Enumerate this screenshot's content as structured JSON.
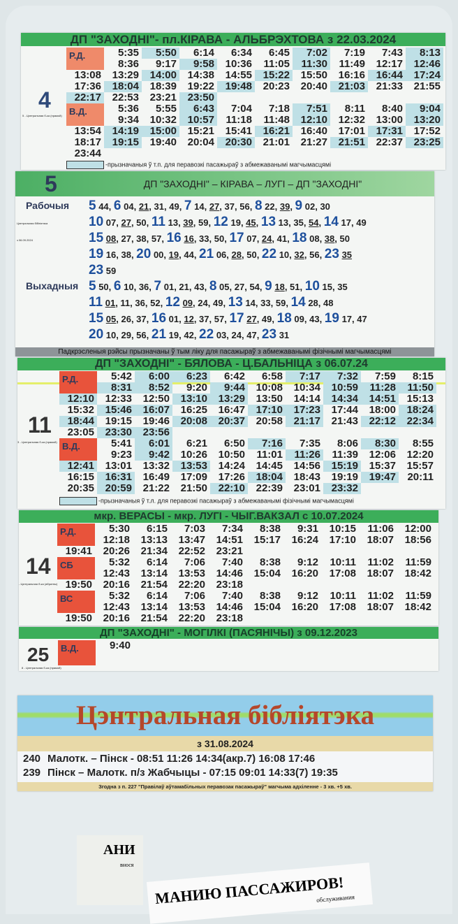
{
  "colors": {
    "header_green": "#3cae5a",
    "workday_label": "#ef8a6a",
    "accessible_highlight": "#bfe0e6",
    "hour_blue": "#1d4f9c",
    "library_title": "#b5472a"
  },
  "route4": {
    "number": "4",
    "title": "ДП \"ЗАХОДНІ\"- пл.КІРАВА - АЛЬБРЭХТОВА з 22.03.2024",
    "side_note": "5 - Цэнтральная б-ка (прамой)",
    "legend": "-прызначаныя ў т.п. для перавозкі пасажыраў з абмежаванымі магчымасцямі",
    "blocks": [
      {
        "label": "Р.Д.",
        "rows": [
          [
            "",
            "5:35",
            "5:50",
            "6:14",
            "6:34",
            "6:45",
            "7:02",
            "7:19",
            "7:43",
            "8:13"
          ],
          [
            "",
            "8:36",
            "9:17",
            "9:58",
            "10:36",
            "11:05",
            "11:30",
            "11:49",
            "12:17",
            "12:46"
          ],
          [
            "13:08",
            "13:29",
            "14:00",
            "14:38",
            "14:55",
            "15:22",
            "15:50",
            "16:16",
            "16:44",
            "17:24"
          ],
          [
            "17:36",
            "18:04",
            "18:39",
            "19:22",
            "19:48",
            "20:23",
            "20:40",
            "21:03",
            "21:33",
            "21:55"
          ],
          [
            "22:17",
            "22:53",
            "23:21",
            "23:50"
          ]
        ],
        "highlighted": [
          "5:50",
          "7:02",
          "8:13",
          "9:58",
          "11:30",
          "12:46",
          "14:00",
          "15:22",
          "16:44",
          "17:24",
          "18:04",
          "19:48",
          "21:03",
          "22:17",
          "23:50"
        ]
      },
      {
        "label": "В.Д.",
        "rows": [
          [
            "",
            "5:36",
            "5:55",
            "6:43",
            "7:04",
            "7:18",
            "7:51",
            "8:11",
            "8:40",
            "9:04"
          ],
          [
            "",
            "9:34",
            "10:32",
            "10:57",
            "11:18",
            "11:48",
            "12:10",
            "12:32",
            "13:00",
            "13:20"
          ],
          [
            "13:54",
            "14:19",
            "15:00",
            "15:21",
            "15:41",
            "16:21",
            "16:40",
            "17:01",
            "17:31",
            "17:52"
          ],
          [
            "18:17",
            "19:15",
            "19:40",
            "20:04",
            "20:30",
            "21:01",
            "21:27",
            "21:51",
            "22:37",
            "23:25"
          ],
          [
            "23:44"
          ]
        ],
        "highlighted": [
          "6:43",
          "7:51",
          "9:04",
          "10:57",
          "12:10",
          "13:20",
          "14:19",
          "15:00",
          "16:21",
          "17:31",
          "19:15",
          "20:30",
          "21:51",
          "23:25"
        ]
      }
    ]
  },
  "route5": {
    "number": "5",
    "title": "ДП \"ЗАХОДНІ\" – КІРАВА – ЛУГІ – ДП \"ЗАХОДНІ\"",
    "side_note_1": "Цэнтральная бібліятэка",
    "side_note_2": "з 06.09.2024",
    "footer": "Падкрэсленыя рэйсы прызначаны ў тым ліку для пасажыраў з абмежаванымі фізічнымі магчымасцямі",
    "groups": [
      {
        "label": "Рабочыя",
        "lines": [
          [
            {
              "h": "5",
              "m": [
                "44"
              ],
              "u": []
            },
            {
              "h": "6",
              "m": [
                "04",
                "21",
                "31",
                "49"
              ],
              "u": [
                "21"
              ]
            },
            {
              "h": "7",
              "m": [
                "14",
                "27",
                "37",
                "56"
              ],
              "u": [
                "27"
              ]
            },
            {
              "h": "8",
              "m": [
                "22",
                "39"
              ],
              "u": [
                "39"
              ]
            },
            {
              "h": "9",
              "m": [
                "02",
                "30"
              ],
              "u": []
            }
          ],
          [
            {
              "h": "10",
              "m": [
                "07",
                "27",
                "50"
              ],
              "u": [
                "27"
              ]
            },
            {
              "h": "11",
              "m": [
                "13",
                "39",
                "59"
              ],
              "u": [
                "39"
              ]
            },
            {
              "h": "12",
              "m": [
                "19",
                "45"
              ],
              "u": [
                "45"
              ]
            },
            {
              "h": "13",
              "m": [
                "13",
                "35",
                "54"
              ],
              "u": [
                "54"
              ]
            },
            {
              "h": "14",
              "m": [
                "17",
                "49"
              ],
              "u": []
            }
          ],
          [
            {
              "h": "15",
              "m": [
                "08",
                "27",
                "38",
                "57"
              ],
              "u": [
                "08"
              ]
            },
            {
              "h": "16",
              "m": [
                "16",
                "33",
                "50"
              ],
              "u": [
                "16"
              ]
            },
            {
              "h": "17",
              "m": [
                "07",
                "24",
                "41"
              ],
              "u": [
                "24"
              ]
            },
            {
              "h": "18",
              "m": [
                "08",
                "38",
                "50"
              ],
              "u": [
                "38"
              ]
            }
          ],
          [
            {
              "h": "19",
              "m": [
                "16",
                "38"
              ],
              "u": []
            },
            {
              "h": "20",
              "m": [
                "00",
                "19",
                "44"
              ],
              "u": [
                "19"
              ]
            },
            {
              "h": "21",
              "m": [
                "06",
                "28",
                "50"
              ],
              "u": [
                "28"
              ]
            },
            {
              "h": "22",
              "m": [
                "10",
                "32",
                "56"
              ],
              "u": [
                "32"
              ]
            },
            {
              "h": "23",
              "m": [
                "35"
              ],
              "u": [
                "35"
              ]
            }
          ],
          [
            {
              "h": "23",
              "m": [
                "59"
              ],
              "u": []
            }
          ]
        ]
      },
      {
        "label": "Выхадныя",
        "lines": [
          [
            {
              "h": "5",
              "m": [
                "50"
              ],
              "u": []
            },
            {
              "h": "6",
              "m": [
                "10",
                "36"
              ],
              "u": []
            },
            {
              "h": "7",
              "m": [
                "01",
                "21",
                "43"
              ],
              "u": []
            },
            {
              "h": "8",
              "m": [
                "05",
                "27",
                "54"
              ],
              "u": []
            },
            {
              "h": "9",
              "m": [
                "18",
                "51"
              ],
              "u": [
                "18"
              ]
            },
            {
              "h": "10",
              "m": [
                "15",
                "35"
              ],
              "u": []
            }
          ],
          [
            {
              "h": "11",
              "m": [
                "01",
                "11",
                "36",
                "52"
              ],
              "u": [
                "01"
              ]
            },
            {
              "h": "12",
              "m": [
                "09",
                "24",
                "49"
              ],
              "u": [
                "09"
              ]
            },
            {
              "h": "13",
              "m": [
                "14",
                "33",
                "59"
              ],
              "u": []
            },
            {
              "h": "14",
              "m": [
                "28",
                "48"
              ],
              "u": []
            }
          ],
          [
            {
              "h": "15",
              "m": [
                "05",
                "26",
                "37"
              ],
              "u": [
                "05"
              ]
            },
            {
              "h": "16",
              "m": [
                "01",
                "12",
                "37",
                "57"
              ],
              "u": [
                "12"
              ]
            },
            {
              "h": "17",
              "m": [
                "27",
                "49"
              ],
              "u": [
                "27"
              ]
            },
            {
              "h": "18",
              "m": [
                "09",
                "43"
              ],
              "u": []
            },
            {
              "h": "19",
              "m": [
                "17",
                "47"
              ],
              "u": []
            }
          ],
          [
            {
              "h": "20",
              "m": [
                "10",
                "29",
                "56"
              ],
              "u": []
            },
            {
              "h": "21",
              "m": [
                "19",
                "42"
              ],
              "u": []
            },
            {
              "h": "22",
              "m": [
                "03",
                "24",
                "47"
              ],
              "u": []
            },
            {
              "h": "23",
              "m": [
                "31"
              ],
              "u": []
            }
          ]
        ]
      }
    ]
  },
  "route11": {
    "number": "11",
    "title": "ДП \"ЗАХОДНІ\" - БЯЛОВА - Ц.БАЛЬНІЦА з 06.07.24",
    "side_note": "3 - Цэнтральная б-ка (прамой)",
    "legend": "-прызначаныя ў т.л. для перавозкі пасажыраў з абмежаванымі фізічнымі магчымасцямі",
    "blocks": [
      {
        "label": "Р.Д.",
        "rows": [
          [
            "",
            "5:42",
            "6:00",
            "6:23",
            "6:42",
            "6:58",
            "7:17",
            "7:32",
            "7:59",
            "8:15"
          ],
          [
            "",
            "8:31",
            "8:52",
            "9:20",
            "9:44",
            "10:08",
            "10:34",
            "10:59",
            "11:28",
            "11:50"
          ],
          [
            "12:10",
            "12:33",
            "12:50",
            "13:10",
            "13:29",
            "13:50",
            "14:14",
            "14:34",
            "14:51",
            "15:13"
          ],
          [
            "15:32",
            "15:46",
            "16:07",
            "16:25",
            "16:47",
            "17:10",
            "17:23",
            "17:44",
            "18:00",
            "18:24"
          ],
          [
            "18:44",
            "19:15",
            "19:46",
            "20:08",
            "20:37",
            "20:58",
            "21:17",
            "21:43",
            "22:12",
            "22:34"
          ],
          [
            "23:05",
            "23:30",
            "23:56"
          ]
        ],
        "highlighted": [
          "6:00",
          "6:23",
          "7:17",
          "7:32",
          "8:31",
          "8:52",
          "9:44",
          "10:59",
          "11:28",
          "11:50",
          "12:10",
          "13:10",
          "13:29",
          "14:34",
          "14:51",
          "15:46",
          "16:07",
          "17:10",
          "17:23",
          "18:24",
          "18:44",
          "20:08",
          "20:37",
          "21:17",
          "22:12",
          "22:34",
          "23:30",
          "23:56"
        ]
      },
      {
        "label": "В.Д.",
        "rows": [
          [
            "",
            "5:41",
            "6:01",
            "6:21",
            "6:50",
            "7:16",
            "7:35",
            "8:06",
            "8:30",
            "8:55"
          ],
          [
            "",
            "9:23",
            "9:42",
            "10:26",
            "10:50",
            "11:01",
            "11:26",
            "11:39",
            "12:06",
            "12:20"
          ],
          [
            "12:41",
            "13:01",
            "13:32",
            "13:53",
            "14:24",
            "14:45",
            "14:56",
            "15:19",
            "15:37",
            "15:57"
          ],
          [
            "16:15",
            "16:31",
            "16:49",
            "17:09",
            "17:26",
            "18:04",
            "18:43",
            "19:19",
            "19:47",
            "20:11"
          ],
          [
            "20:35",
            "20:59",
            "21:22",
            "21:50",
            "22:10",
            "22:39",
            "23:01",
            "23:32"
          ]
        ],
        "highlighted": [
          "6:01",
          "7:16",
          "8:30",
          "9:42",
          "11:26",
          "12:41",
          "13:53",
          "15:19",
          "16:31",
          "18:04",
          "19:47",
          "20:59",
          "22:10",
          "23:32"
        ]
      }
    ]
  },
  "route14": {
    "number": "14",
    "title": "мкр. ВЕРАСЫ - мкр. ЛУГІ - ЧЫГ.ВАКЗАЛ с 10.07.2024",
    "side_note": "- Цэнтральная б-ка (абратны)",
    "blocks": [
      {
        "label": "Р.Д.",
        "rows": [
          [
            "",
            "5:30",
            "6:15",
            "7:03",
            "7:34",
            "8:38",
            "9:31",
            "10:15",
            "11:06",
            "12:00"
          ],
          [
            "",
            "12:18",
            "13:13",
            "13:47",
            "14:51",
            "15:17",
            "16:24",
            "17:10",
            "18:07",
            "18:56"
          ],
          [
            "19:41",
            "20:26",
            "21:34",
            "22:52",
            "23:21"
          ]
        ],
        "highlighted": []
      },
      {
        "label": "СБ",
        "rows": [
          [
            "",
            "5:32",
            "6:14",
            "7:06",
            "7:40",
            "8:38",
            "9:12",
            "10:11",
            "11:02",
            "11:59"
          ],
          [
            "",
            "12:43",
            "13:14",
            "13:53",
            "14:46",
            "15:04",
            "16:20",
            "17:08",
            "18:07",
            "18:42"
          ],
          [
            "19:50",
            "20:16",
            "21:54",
            "22:20",
            "23:18"
          ]
        ],
        "highlighted": []
      },
      {
        "label": "ВС",
        "rows": [
          [
            "",
            "5:32",
            "6:14",
            "7:06",
            "7:40",
            "8:38",
            "9:12",
            "10:11",
            "11:02",
            "11:59"
          ],
          [
            "",
            "12:43",
            "13:14",
            "13:53",
            "14:46",
            "15:04",
            "16:20",
            "17:08",
            "18:07",
            "18:42"
          ],
          [
            "19:50",
            "20:16",
            "21:54",
            "22:20",
            "23:18"
          ]
        ],
        "highlighted": []
      }
    ]
  },
  "route25": {
    "number": "25",
    "title": "ДП \"ЗАХОДНІ\" - МОГІЛКІ (ПАСЯНІЧЫ) з 09.12.2023",
    "side_note": "8 - Цэнтральная б-ка (прамой)",
    "blocks": [
      {
        "label": "В.Д.",
        "rows": [
          [
            "",
            "9:40"
          ]
        ],
        "highlighted": []
      }
    ]
  },
  "library": {
    "title": "Цэнтральная бібліятэка",
    "date": "з 31.08.2024",
    "lines": [
      {
        "num": "240",
        "text": "Малотк. – Пінск - 08:51 11:26 14:34(акр.7) 16:08 17:46"
      },
      {
        "num": "239",
        "text": "Пінск – Малотк. п/з Жабчыцы - 07:15 09:01 14:33(7) 19:35"
      }
    ],
    "footer": "Згодна з п. 227 \"Правілаў аўтамабільных перавозак пасажыраў\" магчыма адхіленне - 3 хв. +5 хв."
  },
  "bottom_notices": {
    "left_fragment": "АНИ",
    "left_small": "внося",
    "right_heading": "МАНИЮ ПАССАЖИРОВ!",
    "right_small": "обслуживания"
  }
}
